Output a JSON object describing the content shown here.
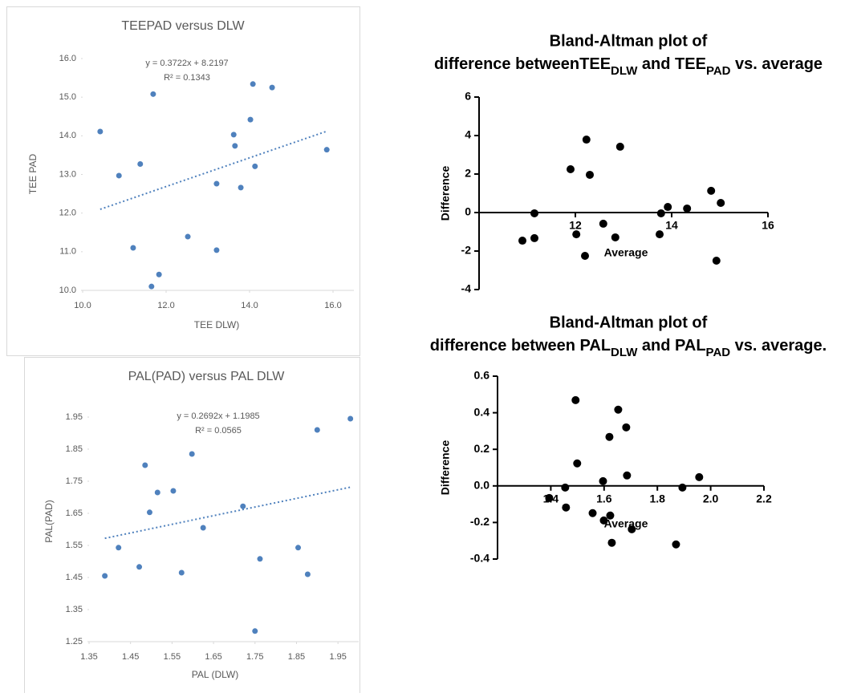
{
  "chart_data": [
    {
      "type": "scatter",
      "style": "excel",
      "title": "TEEPAD versus  DLW",
      "x_label": "TEE  DLW)",
      "y_label": "TEE PAD",
      "x": [
        10.42,
        10.87,
        11.38,
        11.69,
        11.21,
        11.83,
        11.65,
        12.52,
        13.21,
        13.21,
        13.62,
        13.65,
        13.79,
        14.02,
        14.08,
        14.13,
        14.54,
        15.85
      ],
      "values": [
        14.11,
        12.97,
        13.27,
        15.08,
        11.1,
        10.41,
        10.1,
        11.39,
        12.76,
        11.04,
        14.03,
        13.74,
        12.66,
        14.42,
        15.34,
        13.21,
        15.25,
        13.64
      ],
      "color": "#4f81bd",
      "xlim": [
        10,
        16.5
      ],
      "ylim": [
        10,
        16
      ],
      "xticks": [
        {
          "value": 10,
          "label": "10.0"
        },
        {
          "value": 12,
          "label": "12.0"
        },
        {
          "value": 14,
          "label": "14.0"
        },
        {
          "value": 16,
          "label": "16.0"
        }
      ],
      "yticks": [
        {
          "value": 10,
          "label": "10.0"
        },
        {
          "value": 11,
          "label": "11.0"
        },
        {
          "value": 12,
          "label": "12.0"
        },
        {
          "value": 13,
          "label": "13.0"
        },
        {
          "value": 14,
          "label": "14.0"
        },
        {
          "value": 15,
          "label": "15.0"
        },
        {
          "value": 16,
          "label": "16.0"
        }
      ],
      "trendline": {
        "slope": 0.3722,
        "intercept": 8.2197,
        "equation": "y = 0.3722x + 8.2197",
        "r_squared": "R² = 0.1343"
      }
    },
    {
      "type": "scatter",
      "style": "excel",
      "title": "PAL(PAD) versus PAL  DLW",
      "x_label": "PAL (DLW)",
      "y_label": "PAL(PAD)",
      "x": [
        1.388,
        1.421,
        1.471,
        1.485,
        1.515,
        1.553,
        1.496,
        1.573,
        1.598,
        1.625,
        1.721,
        1.762,
        1.75,
        1.854,
        1.877,
        1.9,
        1.98
      ],
      "values": [
        1.455,
        1.543,
        1.483,
        1.8,
        1.715,
        1.72,
        1.653,
        1.465,
        1.835,
        1.605,
        1.672,
        1.508,
        1.283,
        1.543,
        1.46,
        1.91,
        1.945
      ],
      "color": "#4f81bd",
      "xlim": [
        1.35,
        2.0
      ],
      "ylim": [
        1.25,
        2.0
      ],
      "xticks": [
        1.35,
        1.45,
        1.55,
        1.65,
        1.75,
        1.85,
        1.95
      ],
      "yticks": [
        1.25,
        1.35,
        1.45,
        1.55,
        1.65,
        1.75,
        1.85,
        1.95
      ],
      "trendline": {
        "slope": 0.2692,
        "intercept": 1.1985,
        "equation": "y = 0.2692x + 1.1985",
        "r_squared": "R² = 0.0565"
      }
    },
    {
      "type": "scatter",
      "style": "prism",
      "title": "Bland-Altman plot of",
      "title_line2": [
        {
          "text": "difference betweenTEE"
        },
        {
          "text": "DLW",
          "sub": true
        },
        {
          "text": " and TEE"
        },
        {
          "text": "PAD",
          "sub": true
        },
        {
          "text": " vs. average"
        }
      ],
      "x_label": "Average",
      "y_label": "Difference",
      "x": [
        10.9,
        11.15,
        11.15,
        11.9,
        12.02,
        12.2,
        12.23,
        12.3,
        12.58,
        12.83,
        12.93,
        13.75,
        13.78,
        13.92,
        14.32,
        14.82,
        14.93,
        15.02
      ],
      "values": [
        -1.46,
        -1.33,
        -0.04,
        2.25,
        -1.13,
        -2.25,
        3.79,
        1.96,
        -0.58,
        -1.29,
        3.42,
        -1.13,
        -0.04,
        0.29,
        0.21,
        1.13,
        -2.5,
        0.5
      ],
      "color": "#000000",
      "xlim": [
        10,
        16
      ],
      "ylim": [
        -4,
        6
      ],
      "xticks": [
        12,
        14,
        16
      ],
      "yticks": [
        6,
        4,
        2,
        0,
        -2,
        -4
      ]
    },
    {
      "type": "scatter",
      "style": "prism",
      "title": "Bland-Altman plot of",
      "title_line2": [
        {
          "text": "difference between PAL"
        },
        {
          "text": "DLW",
          "sub": true
        },
        {
          "text": " and PAL"
        },
        {
          "text": "PAD",
          "sub": true
        },
        {
          "text": " vs. average."
        }
      ],
      "x_label": "Average",
      "y_label": "Difference",
      "x": [
        1.394,
        1.454,
        1.457,
        1.493,
        1.499,
        1.557,
        1.596,
        1.599,
        1.62,
        1.623,
        1.629,
        1.653,
        1.683,
        1.686,
        1.704,
        1.87,
        1.894,
        1.957
      ],
      "values": [
        -0.066,
        -0.009,
        -0.118,
        0.469,
        0.123,
        -0.149,
        0.026,
        -0.189,
        0.268,
        -0.162,
        -0.311,
        0.417,
        0.32,
        0.057,
        -0.237,
        -0.32,
        -0.009,
        0.048
      ],
      "color": "#000000",
      "xlim": [
        1.2,
        2.2
      ],
      "ylim": [
        -0.4,
        0.6
      ],
      "xticks": [
        1.4,
        1.6,
        1.8,
        {
          "value": 2,
          "label": "2.0"
        },
        2.2
      ],
      "yticks": [
        0.6,
        0.4,
        0.2,
        {
          "value": 0,
          "label": "0.0"
        },
        -0.2,
        -0.4
      ]
    }
  ]
}
